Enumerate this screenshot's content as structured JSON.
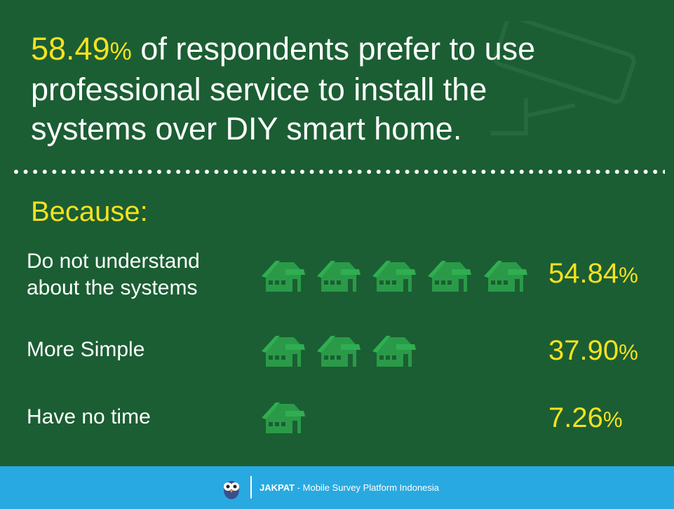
{
  "headline": {
    "highlight": "58.49",
    "unit": "%",
    "lines": [
      "of respondents prefer to use",
      "professional service to install the",
      "systems over DIY smart home."
    ]
  },
  "section_title": "Because:",
  "reasons": [
    {
      "lines": [
        "Do not understand",
        "about the systems"
      ],
      "value": "54.84",
      "unit": "%"
    },
    {
      "lines": [
        "More Simple"
      ],
      "value": "37.90",
      "unit": "%"
    },
    {
      "lines": [
        "Have no time"
      ],
      "value": "7.26",
      "unit": "%"
    }
  ],
  "footer": {
    "brand": "JAKPAT",
    "tagline": "- Mobile Survey Platform Indonesia"
  }
}
